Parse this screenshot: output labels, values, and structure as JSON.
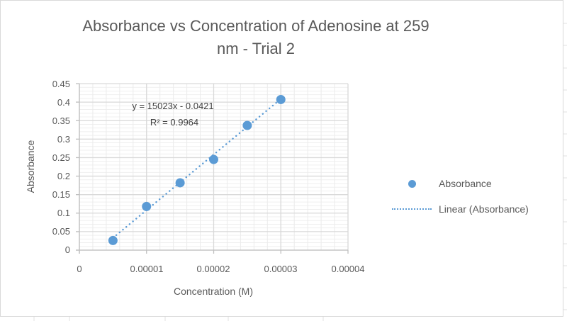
{
  "chart": {
    "title": "Absorbance vs Concentration of Adenosine at 259 nm - Trial 2",
    "title_line1": "Absorbance vs Concentration of Adenosine at 259",
    "title_line2": "nm - Trial 2",
    "x_axis_title": "Concentration (M)",
    "y_axis_title": "Absorbance",
    "trendline_equation": "y = 15023x - 0.0421",
    "trendline_r2": "R² = 0.9964",
    "legend": [
      {
        "label": "Absorbance",
        "type": "marker"
      },
      {
        "label": "Linear (Absorbance)",
        "type": "dotted-line"
      }
    ],
    "colors": {
      "series": "#5b9bd5",
      "text": "#595959",
      "grid": "#d9d9d9"
    }
  },
  "chart_data": {
    "type": "scatter",
    "title": "Absorbance vs Concentration of Adenosine at 259 nm - Trial 2",
    "xlabel": "Concentration (M)",
    "ylabel": "Absorbance",
    "x_ticks": [
      "0",
      "0.00001",
      "0.00002",
      "0.00003",
      "0.00004"
    ],
    "y_ticks": [
      "0",
      "0.05",
      "0.1",
      "0.15",
      "0.2",
      "0.25",
      "0.3",
      "0.35",
      "0.4",
      "0.45"
    ],
    "xlim": [
      0,
      4e-05
    ],
    "ylim": [
      0,
      0.45
    ],
    "grid": true,
    "legend_position": "right",
    "series": [
      {
        "name": "Absorbance",
        "x": [
          5e-06,
          1e-05,
          1.5e-05,
          2e-05,
          2.5e-05,
          3e-05
        ],
        "y": [
          0.026,
          0.118,
          0.182,
          0.245,
          0.337,
          0.407
        ]
      }
    ],
    "trendline": {
      "name": "Linear (Absorbance)",
      "type": "linear",
      "slope": 15023,
      "intercept": -0.0421,
      "r_squared": 0.9964,
      "equation": "y = 15023x - 0.0421"
    }
  }
}
